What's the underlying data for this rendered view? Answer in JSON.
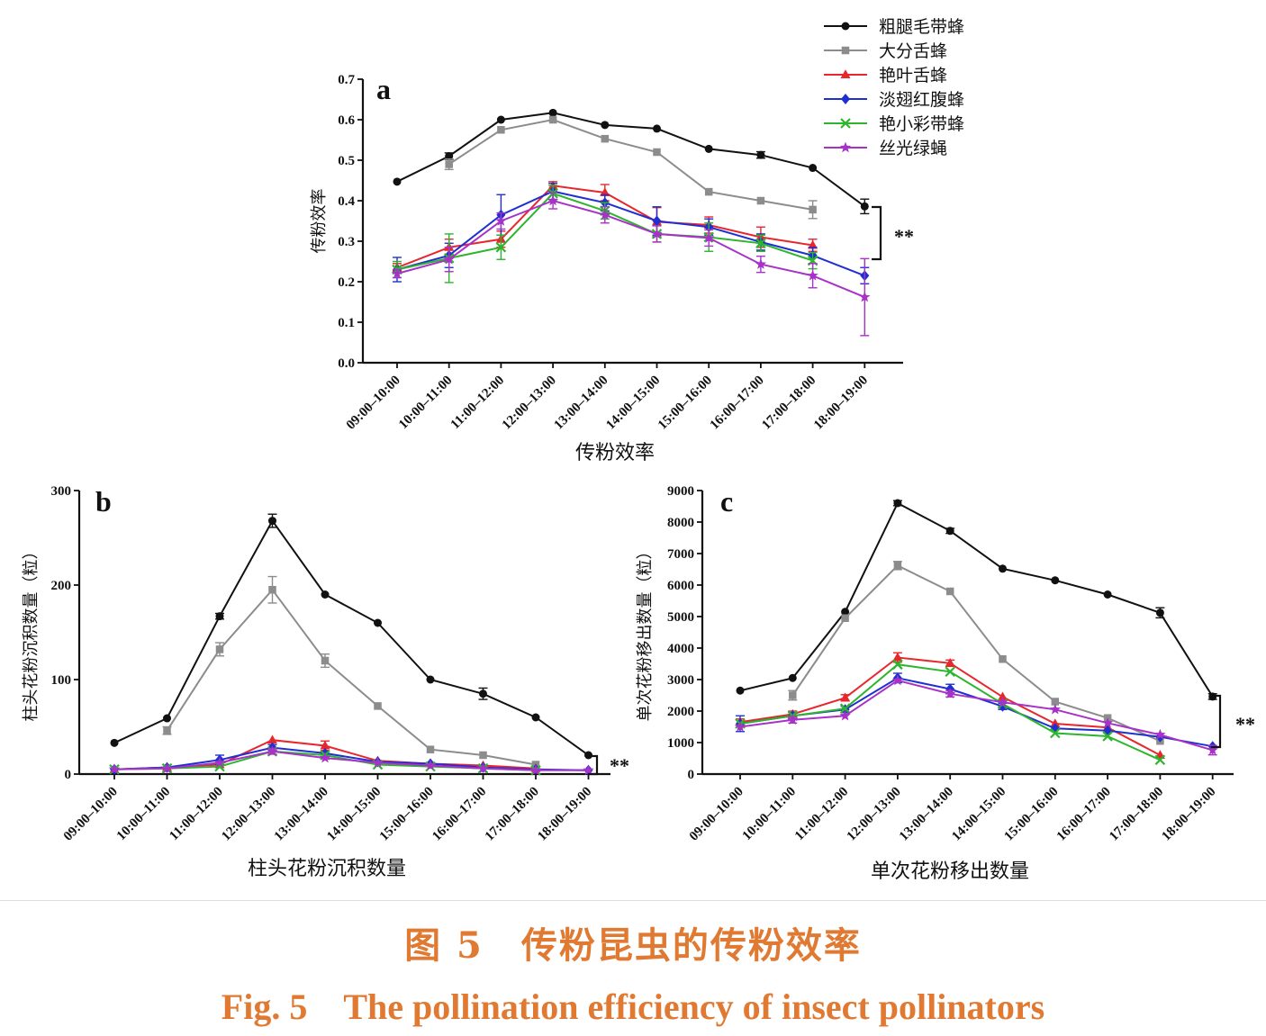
{
  "legend": [
    {
      "name": "粗腿毛带蜂",
      "color": "#111111",
      "marker": "circle"
    },
    {
      "name": "大分舌蜂",
      "color": "#8c8c8c",
      "marker": "square"
    },
    {
      "name": "艳叶舌蜂",
      "color": "#e8262d",
      "marker": "triangle"
    },
    {
      "name": "淡翅红腹蜂",
      "color": "#1f2fd1",
      "marker": "diamond"
    },
    {
      "name": "艳小彩带蜂",
      "color": "#2db52d",
      "marker": "x"
    },
    {
      "name": "丝光绿蝇",
      "color": "#a832c8",
      "marker": "star"
    }
  ],
  "caption": {
    "cn": "图 5　传粉昆虫的传粉效率",
    "en": "Fig. 5　The pollination efficiency of insect pollinators"
  },
  "chart_data": [
    {
      "panel": "a",
      "type": "line",
      "title": "传粉效率",
      "ylabel": "传粉效率",
      "ylim": [
        0,
        0.7
      ],
      "yticks": [
        "0.0",
        "0.1",
        "0.2",
        "0.3",
        "0.4",
        "0.5",
        "0.6",
        "0.7"
      ],
      "categories": [
        "09:00–10:00",
        "10:00–11:00",
        "11:00–12:00",
        "12:00–13:00",
        "13:00–14:00",
        "14:00–15:00",
        "15:00–16:00",
        "16:00–17:00",
        "17:00–18:00",
        "18:00–19:00"
      ],
      "significance": "**",
      "series": [
        {
          "name": "粗腿毛带蜂",
          "values": [
            0.447,
            0.51,
            0.6,
            0.617,
            0.587,
            0.578,
            0.528,
            0.513,
            0.481,
            0.386
          ],
          "errors": [
            0,
            0.008,
            0,
            0,
            0,
            0,
            0,
            0.008,
            0,
            0.018
          ]
        },
        {
          "name": "大分舌蜂",
          "values": [
            null,
            0.49,
            0.575,
            0.6,
            0.553,
            0.52,
            0.422,
            0.4,
            0.378,
            null
          ],
          "errors": [
            0,
            0.013,
            0,
            0,
            0,
            0,
            0,
            0,
            0.022,
            0
          ]
        },
        {
          "name": "艳叶舌蜂",
          "values": [
            0.235,
            0.285,
            0.305,
            0.437,
            0.42,
            0.348,
            0.34,
            0.31,
            0.29,
            null
          ],
          "errors": [
            0.01,
            0.02,
            0.02,
            0.01,
            0.02,
            0.035,
            0.02,
            0.025,
            0.015,
            0
          ]
        },
        {
          "name": "淡翅红腹蜂",
          "values": [
            0.23,
            0.265,
            0.365,
            0.423,
            0.395,
            0.35,
            0.335,
            0.298,
            0.265,
            0.215
          ],
          "errors": [
            0.03,
            0.03,
            0.05,
            0.02,
            0.02,
            0.035,
            0.02,
            0.02,
            0.02,
            0.02
          ]
        },
        {
          "name": "艳小彩带蜂",
          "values": [
            0.23,
            0.258,
            0.285,
            0.418,
            0.375,
            0.318,
            0.31,
            0.295,
            0.252,
            null
          ],
          "errors": [
            0.02,
            0.06,
            0.03,
            0.02,
            0.02,
            0.02,
            0.035,
            0.02,
            0.02,
            0
          ]
        },
        {
          "name": "丝光绿蝇",
          "values": [
            0.22,
            0.255,
            0.35,
            0.4,
            0.365,
            0.318,
            0.308,
            0.243,
            0.215,
            0.162
          ],
          "errors": [
            0.01,
            0.03,
            0.02,
            0.02,
            0.02,
            0.02,
            0.02,
            0.02,
            0.03,
            0.095
          ]
        }
      ]
    },
    {
      "panel": "b",
      "type": "line",
      "title": "柱头花粉沉积数量",
      "ylabel": "柱头花粉沉积数量（粒）",
      "ylim": [
        0,
        300
      ],
      "yticks": [
        "0",
        "100",
        "200",
        "300"
      ],
      "categories": [
        "09:00–10:00",
        "10:00–11:00",
        "11:00–12:00",
        "12:00–13:00",
        "13:00–14:00",
        "14:00–15:00",
        "15:00–16:00",
        "16:00–17:00",
        "17:00–18:00",
        "18:00–19:00"
      ],
      "significance": "**",
      "series": [
        {
          "name": "粗腿毛带蜂",
          "values": [
            33,
            59,
            167,
            268,
            190,
            160,
            100,
            85,
            60,
            20
          ],
          "errors": [
            0,
            0,
            3,
            7,
            0,
            0,
            0,
            6,
            0,
            0
          ]
        },
        {
          "name": "大分舌蜂",
          "values": [
            null,
            46,
            132,
            195,
            120,
            72,
            26,
            20,
            10,
            null
          ],
          "errors": [
            0,
            4,
            7,
            14,
            7,
            0,
            0,
            0,
            0,
            0
          ]
        },
        {
          "name": "艳叶舌蜂",
          "values": [
            5,
            7,
            10,
            36,
            30,
            14,
            11,
            9,
            6,
            null
          ],
          "errors": [
            0,
            0,
            0,
            0,
            5,
            0,
            0,
            0,
            0,
            0
          ]
        },
        {
          "name": "淡翅红腹蜂",
          "values": [
            5,
            7,
            15,
            28,
            22,
            13,
            11,
            7,
            5,
            4
          ],
          "errors": [
            0,
            0,
            5,
            3,
            0,
            0,
            0,
            0,
            0,
            0
          ]
        },
        {
          "name": "艳小彩带蜂",
          "values": [
            5,
            6,
            8,
            24,
            20,
            10,
            8,
            6,
            4,
            null
          ],
          "errors": [
            0,
            0,
            0,
            0,
            0,
            0,
            0,
            0,
            0,
            0
          ]
        },
        {
          "name": "丝光绿蝇",
          "values": [
            5,
            6,
            12,
            24,
            17,
            12,
            9,
            6,
            4,
            4
          ],
          "errors": [
            0,
            0,
            0,
            3,
            0,
            0,
            0,
            0,
            0,
            0
          ]
        }
      ]
    },
    {
      "panel": "c",
      "type": "line",
      "title": "单次花粉移出数量",
      "ylabel": "单次花粉移出数量（粒）",
      "ylim": [
        0,
        9000
      ],
      "yticks": [
        "0",
        "1000",
        "2000",
        "3000",
        "4000",
        "5000",
        "6000",
        "7000",
        "8000",
        "9000"
      ],
      "categories": [
        "09:00–10:00",
        "10:00–11:00",
        "11:00–12:00",
        "12:00–13:00",
        "13:00–14:00",
        "14:00–15:00",
        "15:00–16:00",
        "16:00–17:00",
        "17:00–18:00",
        "18:00–19:00"
      ],
      "significance": "**",
      "series": [
        {
          "name": "粗腿毛带蜂",
          "values": [
            2650,
            3050,
            5150,
            8600,
            7720,
            6520,
            6150,
            5700,
            5120,
            2460
          ],
          "errors": [
            0,
            0,
            0,
            80,
            80,
            0,
            0,
            0,
            160,
            90
          ]
        },
        {
          "name": "大分舌蜂",
          "values": [
            null,
            2500,
            4950,
            6620,
            5800,
            3650,
            2300,
            1780,
            1050,
            null
          ],
          "errors": [
            0,
            150,
            0,
            130,
            0,
            0,
            0,
            0,
            0,
            0
          ]
        },
        {
          "name": "艳叶舌蜂",
          "values": [
            1650,
            1900,
            2420,
            3700,
            3520,
            2450,
            1600,
            1480,
            600,
            null
          ],
          "errors": [
            100,
            100,
            100,
            150,
            100,
            0,
            0,
            0,
            0,
            0
          ]
        },
        {
          "name": "淡翅红腹蜂",
          "values": [
            1600,
            1850,
            2050,
            3050,
            2700,
            2150,
            1450,
            1380,
            1180,
            880
          ],
          "errors": [
            250,
            100,
            100,
            150,
            150,
            100,
            0,
            0,
            0,
            0
          ]
        },
        {
          "name": "艳小彩带蜂",
          "values": [
            1600,
            1850,
            2080,
            3480,
            3250,
            2230,
            1300,
            1200,
            450,
            null
          ],
          "errors": [
            0,
            0,
            0,
            0,
            0,
            0,
            0,
            0,
            0,
            0
          ]
        },
        {
          "name": "丝光绿蝇",
          "values": [
            1500,
            1720,
            1850,
            2970,
            2550,
            2280,
            2050,
            1620,
            1250,
            760
          ],
          "errors": [
            0,
            100,
            0,
            0,
            100,
            0,
            0,
            0,
            0,
            150
          ]
        }
      ]
    }
  ]
}
